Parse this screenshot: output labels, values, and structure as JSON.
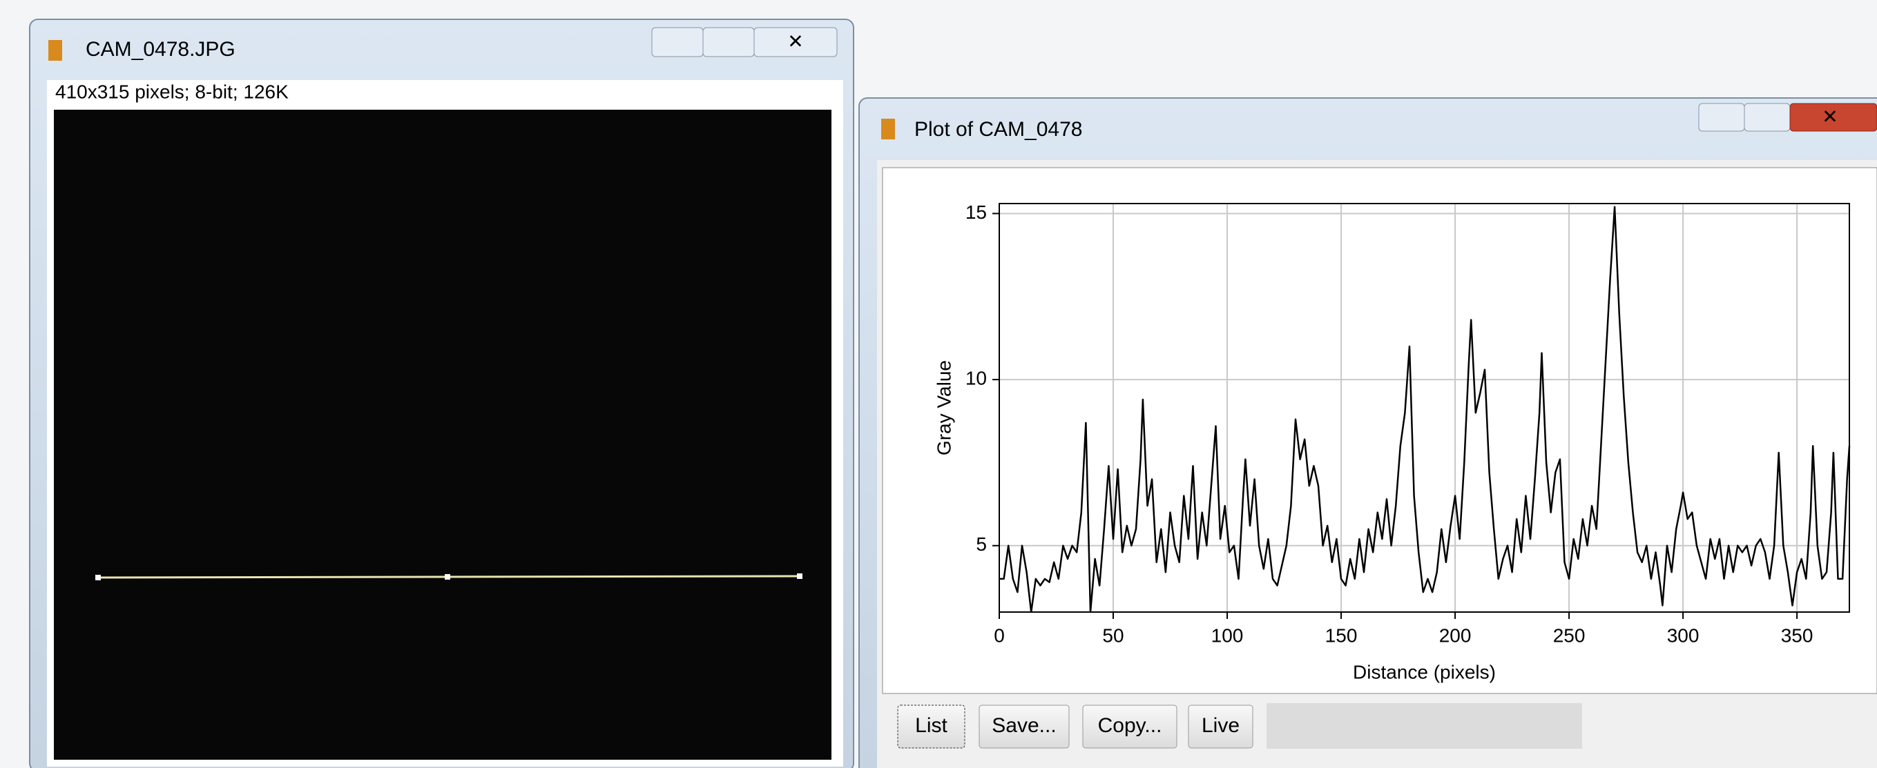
{
  "windows": [
    {
      "title": "CAM_0478.JPG",
      "info": "410x315 pixels; 8-bit; 126K"
    },
    {
      "title": "Plot of CAM_0478",
      "buttons": [
        "List",
        "Save...",
        "Copy...",
        "Live"
      ]
    }
  ],
  "chart_data": {
    "type": "line",
    "xlabel": "Distance (pixels)",
    "ylabel": "Gray Value",
    "color": "#000000",
    "grid": true,
    "xlim": [
      0,
      373
    ],
    "ylim": [
      3,
      15.3
    ],
    "xticks": [
      0,
      50,
      100,
      150,
      200,
      250,
      300,
      350
    ],
    "yticks": [
      5,
      10,
      15
    ],
    "x": [
      0,
      2,
      4,
      6,
      8,
      10,
      12,
      14,
      16,
      18,
      20,
      22,
      24,
      26,
      28,
      30,
      32,
      34,
      36,
      38,
      40,
      42,
      44,
      46,
      48,
      50,
      52,
      54,
      56,
      58,
      60,
      62,
      63,
      65,
      67,
      69,
      71,
      73,
      75,
      77,
      79,
      81,
      83,
      85,
      87,
      89,
      91,
      93,
      95,
      97,
      99,
      101,
      103,
      105,
      107,
      108,
      110,
      112,
      114,
      116,
      118,
      120,
      122,
      124,
      126,
      128,
      130,
      132,
      134,
      136,
      138,
      140,
      142,
      144,
      146,
      148,
      150,
      152,
      154,
      156,
      158,
      160,
      162,
      164,
      166,
      168,
      170,
      172,
      174,
      176,
      178,
      180,
      182,
      184,
      186,
      188,
      190,
      192,
      194,
      196,
      198,
      200,
      202,
      204,
      206,
      207,
      209,
      211,
      213,
      215,
      217,
      219,
      221,
      223,
      225,
      227,
      229,
      231,
      233,
      235,
      237,
      238,
      240,
      242,
      244,
      246,
      248,
      250,
      252,
      254,
      256,
      258,
      260,
      262,
      264,
      266,
      268,
      270,
      272,
      274,
      276,
      278,
      280,
      282,
      284,
      286,
      288,
      290,
      291,
      293,
      295,
      297,
      299,
      300,
      302,
      304,
      306,
      308,
      310,
      312,
      314,
      316,
      318,
      320,
      322,
      324,
      326,
      328,
      330,
      332,
      334,
      336,
      338,
      340,
      342,
      344,
      346,
      348,
      350,
      352,
      354,
      356,
      357,
      359,
      361,
      363,
      365,
      366,
      368,
      370,
      372,
      373
    ],
    "values": [
      4.0,
      4.0,
      5.0,
      4.0,
      3.6,
      5.0,
      4.2,
      3.0,
      4.0,
      3.8,
      4.0,
      3.9,
      4.5,
      4.0,
      5.0,
      4.6,
      5.0,
      4.8,
      6.0,
      8.7,
      3.0,
      4.6,
      3.8,
      5.5,
      7.4,
      5.2,
      7.3,
      4.8,
      5.6,
      5.0,
      5.5,
      7.6,
      9.4,
      6.2,
      7.0,
      4.5,
      5.5,
      4.2,
      6.0,
      5.0,
      4.5,
      6.5,
      5.2,
      7.4,
      4.6,
      6.0,
      5.0,
      6.8,
      8.6,
      5.2,
      6.2,
      4.8,
      5.0,
      4.0,
      6.5,
      7.6,
      5.6,
      7.0,
      5.0,
      4.3,
      5.2,
      4.0,
      3.8,
      4.4,
      5.0,
      6.2,
      8.8,
      7.6,
      8.2,
      6.8,
      7.4,
      6.8,
      5.0,
      5.6,
      4.5,
      5.2,
      4.0,
      3.8,
      4.6,
      4.0,
      5.2,
      4.2,
      5.5,
      4.8,
      6.0,
      5.2,
      6.4,
      5.0,
      6.2,
      8.0,
      9.0,
      11.0,
      6.5,
      4.8,
      3.6,
      4.0,
      3.6,
      4.2,
      5.5,
      4.5,
      5.6,
      6.5,
      5.2,
      7.5,
      10.5,
      11.8,
      9.0,
      9.6,
      10.3,
      7.2,
      5.5,
      4.0,
      4.6,
      5.0,
      4.2,
      5.8,
      4.8,
      6.5,
      5.2,
      7.0,
      9.0,
      10.8,
      7.5,
      6.0,
      7.2,
      7.6,
      4.5,
      4.0,
      5.2,
      4.6,
      5.8,
      5.0,
      6.2,
      5.5,
      8.0,
      10.5,
      13.0,
      15.2,
      12.0,
      9.5,
      7.5,
      6.0,
      4.8,
      4.5,
      5.0,
      4.0,
      4.8,
      3.8,
      3.2,
      5.0,
      4.2,
      5.5,
      6.2,
      6.6,
      5.8,
      6.0,
      5.0,
      4.5,
      4.0,
      5.2,
      4.6,
      5.2,
      4.0,
      5.0,
      4.2,
      5.0,
      4.8,
      5.0,
      4.4,
      5.0,
      5.2,
      4.8,
      4.0,
      5.0,
      7.8,
      5.0,
      4.2,
      3.2,
      4.2,
      4.6,
      4.0,
      6.0,
      8.0,
      5.0,
      4.0,
      4.2,
      6.0,
      7.8,
      4.0,
      4.0,
      7.0,
      8.0
    ]
  }
}
